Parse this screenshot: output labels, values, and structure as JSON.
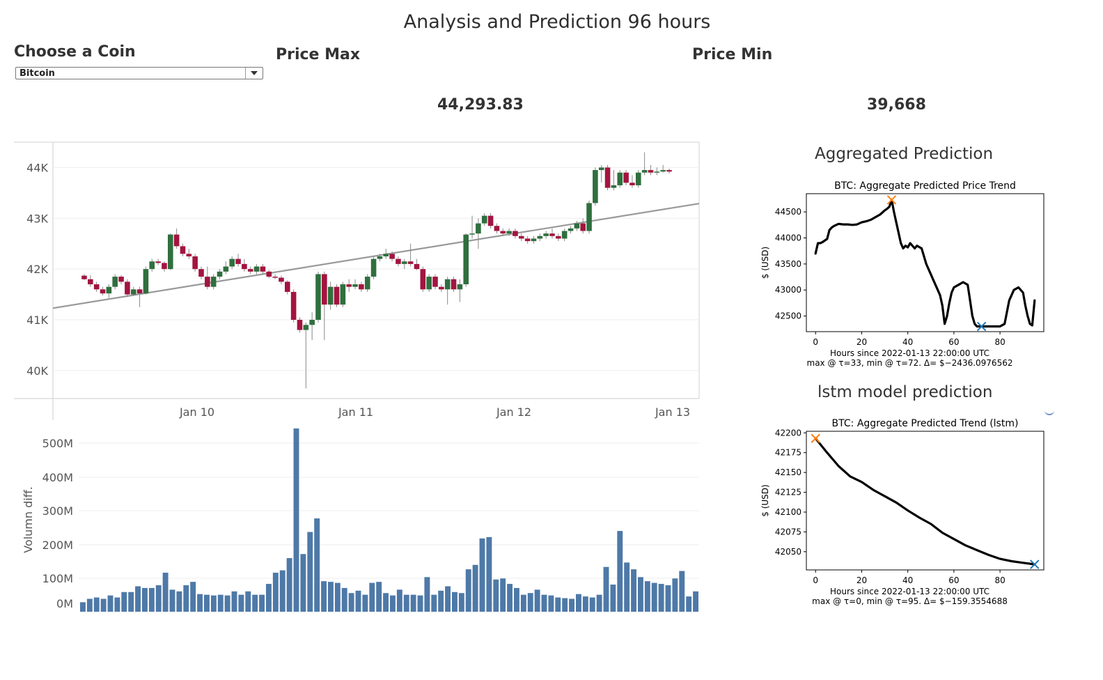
{
  "page": {
    "title": "Analysis and Prediction 96 hours",
    "coin_label": "Choose a Coin",
    "coin_selected": "Bitcoin",
    "price_max_label": "Price Max",
    "price_max_value": "44,293.83",
    "price_min_label": "Price Min",
    "price_min_value": "39,668",
    "agg_panel_title": "Aggregated Prediction",
    "lstm_panel_title": "lstm model prediction"
  },
  "colors": {
    "up": "#2f6f3e",
    "down": "#a31440",
    "trend": "#999999",
    "volume": "#4e79a7"
  },
  "chart_data": [
    {
      "type": "candlestick",
      "title": "",
      "xlabel": "",
      "ylabel": "",
      "x_ticks": [
        "Jan 10",
        "Jan 11",
        "Jan 12",
        "Jan 13"
      ],
      "y_ticks": [
        "40K",
        "41K",
        "42K",
        "43K",
        "44K"
      ],
      "ylim": [
        39450,
        44500
      ],
      "grid": true,
      "trendline": {
        "start": 41230,
        "end": 43290
      },
      "ohlc": [
        [
          41870,
          41900,
          41780,
          41800
        ],
        [
          41800,
          41880,
          41650,
          41700
        ],
        [
          41700,
          41750,
          41550,
          41600
        ],
        [
          41600,
          41650,
          41480,
          41520
        ],
        [
          41520,
          41700,
          41430,
          41650
        ],
        [
          41650,
          41900,
          41600,
          41850
        ],
        [
          41850,
          41880,
          41700,
          41750
        ],
        [
          41750,
          41800,
          41450,
          41500
        ],
        [
          41500,
          41650,
          41470,
          41600
        ],
        [
          41600,
          41650,
          41250,
          41520
        ],
        [
          41520,
          42050,
          41500,
          42000
        ],
        [
          42000,
          42200,
          41950,
          42150
        ],
        [
          42150,
          42200,
          42080,
          42120
        ],
        [
          42120,
          42150,
          41950,
          42000
        ],
        [
          42000,
          42700,
          41980,
          42680
        ],
        [
          42680,
          42800,
          42400,
          42450
        ],
        [
          42450,
          42500,
          42250,
          42300
        ],
        [
          42300,
          42400,
          42200,
          42250
        ],
        [
          42250,
          42300,
          41950,
          42000
        ],
        [
          42000,
          42050,
          41800,
          41850
        ],
        [
          41850,
          42050,
          41600,
          41650
        ],
        [
          41650,
          41900,
          41600,
          41850
        ],
        [
          41850,
          42000,
          41800,
          41950
        ],
        [
          41950,
          42150,
          41900,
          42050
        ],
        [
          42050,
          42250,
          42000,
          42200
        ],
        [
          42200,
          42300,
          42050,
          42100
        ],
        [
          42100,
          42200,
          41950,
          42000
        ],
        [
          42000,
          42050,
          41900,
          41950
        ],
        [
          41950,
          42100,
          41900,
          42050
        ],
        [
          42050,
          42100,
          41900,
          41950
        ],
        [
          41950,
          41980,
          41820,
          41850
        ],
        [
          41850,
          41900,
          41800,
          41830
        ],
        [
          41830,
          41870,
          41700,
          41750
        ],
        [
          41750,
          41780,
          41500,
          41550
        ],
        [
          41550,
          41600,
          40950,
          41000
        ],
        [
          41000,
          41050,
          40750,
          40800
        ],
        [
          40800,
          40950,
          39650,
          40900
        ],
        [
          40900,
          41150,
          40600,
          41000
        ],
        [
          41000,
          41950,
          40950,
          41900
        ],
        [
          41900,
          41950,
          40600,
          41300
        ],
        [
          41300,
          41750,
          41200,
          41650
        ],
        [
          41650,
          41700,
          41250,
          41300
        ],
        [
          41300,
          41750,
          41250,
          41700
        ],
        [
          41700,
          41800,
          41550,
          41650
        ],
        [
          41650,
          41800,
          41600,
          41700
        ],
        [
          41700,
          41750,
          41550,
          41600
        ],
        [
          41600,
          41900,
          41550,
          41850
        ],
        [
          41850,
          42250,
          41800,
          42200
        ],
        [
          42200,
          42300,
          42150,
          42250
        ],
        [
          42250,
          42400,
          42200,
          42300
        ],
        [
          42300,
          42350,
          42150,
          42200
        ],
        [
          42200,
          42250,
          42050,
          42100
        ],
        [
          42100,
          42200,
          42000,
          42150
        ],
        [
          42150,
          42500,
          42050,
          42100
        ],
        [
          42100,
          42200,
          41980,
          42000
        ],
        [
          42000,
          42050,
          41550,
          41600
        ],
        [
          41600,
          41900,
          41550,
          41850
        ],
        [
          41850,
          41900,
          41600,
          41650
        ],
        [
          41650,
          41700,
          41550,
          41600
        ],
        [
          41600,
          41850,
          41300,
          41800
        ],
        [
          41800,
          41850,
          41550,
          41600
        ],
        [
          41600,
          41800,
          41350,
          41700
        ],
        [
          41700,
          42700,
          41650,
          42680
        ],
        [
          42680,
          43050,
          42600,
          42700
        ],
        [
          42700,
          43000,
          42400,
          42900
        ],
        [
          42900,
          43100,
          42850,
          43050
        ],
        [
          43050,
          43100,
          42800,
          42850
        ],
        [
          42850,
          42900,
          42700,
          42750
        ],
        [
          42750,
          42800,
          42650,
          42700
        ],
        [
          42700,
          42800,
          42650,
          42750
        ],
        [
          42750,
          42800,
          42600,
          42650
        ],
        [
          42650,
          42700,
          42550,
          42600
        ],
        [
          42600,
          42650,
          42500,
          42550
        ],
        [
          42550,
          42650,
          42500,
          42600
        ],
        [
          42600,
          42700,
          42550,
          42650
        ],
        [
          42650,
          42750,
          42600,
          42700
        ],
        [
          42700,
          42800,
          42600,
          42650
        ],
        [
          42650,
          42700,
          42550,
          42600
        ],
        [
          42600,
          42800,
          42550,
          42750
        ],
        [
          42750,
          42850,
          42700,
          42800
        ],
        [
          42800,
          42950,
          42750,
          42900
        ],
        [
          42900,
          43000,
          42700,
          42750
        ],
        [
          42750,
          43350,
          42700,
          43300
        ],
        [
          43300,
          44000,
          43250,
          43950
        ],
        [
          43950,
          44050,
          43700,
          44000
        ],
        [
          44000,
          44050,
          43550,
          43600
        ],
        [
          43600,
          43950,
          43550,
          43650
        ],
        [
          43650,
          43950,
          43600,
          43900
        ],
        [
          43900,
          43950,
          43650,
          43700
        ],
        [
          43700,
          43850,
          43600,
          43650
        ],
        [
          43650,
          43950,
          43600,
          43900
        ],
        [
          43900,
          44300,
          43850,
          43950
        ],
        [
          43950,
          44050,
          43850,
          43900
        ],
        [
          43900,
          44000,
          43850,
          43920
        ],
        [
          43920,
          44050,
          43900,
          43950
        ],
        [
          43950,
          43980,
          43880,
          43920
        ]
      ]
    },
    {
      "type": "bar",
      "title": "",
      "xlabel": "",
      "ylabel": "Volumn diff.",
      "y_ticks": [
        "0M",
        "100M",
        "200M",
        "300M",
        "400M",
        "500M"
      ],
      "ylim": [
        -20,
        520
      ],
      "grid": true,
      "values": [
        8,
        18,
        22,
        18,
        28,
        22,
        38,
        38,
        55,
        50,
        50,
        58,
        95,
        45,
        40,
        58,
        68,
        32,
        30,
        28,
        30,
        28,
        40,
        30,
        40,
        30,
        30,
        62,
        95,
        102,
        138,
        520,
        150,
        215,
        255,
        70,
        68,
        65,
        50,
        35,
        42,
        30,
        65,
        68,
        35,
        28,
        45,
        30,
        30,
        28,
        82,
        30,
        42,
        55,
        38,
        35,
        105,
        118,
        196,
        200,
        75,
        78,
        62,
        50,
        30,
        35,
        45,
        30,
        28,
        22,
        20,
        18,
        32,
        25,
        22,
        30,
        112,
        60,
        218,
        125,
        105,
        82,
        70,
        65,
        62,
        58,
        78,
        100,
        25,
        40
      ]
    },
    {
      "type": "line",
      "title": "BTC: Aggregate Predicted Price Trend",
      "xlabel": "Hours since 2022-01-13 22:00:00 UTC",
      "ylabel": "$ (USD)",
      "annotation": "max @ τ=33, min @ τ=72. Δ= $−2436.0976562",
      "xlim": [
        -4,
        99
      ],
      "ylim": [
        42200,
        44850
      ],
      "x_ticks": [
        0,
        20,
        40,
        60,
        80
      ],
      "y_ticks": [
        42500,
        43000,
        43500,
        44000,
        44500
      ],
      "max_point": [
        33,
        44730
      ],
      "min_point": [
        72,
        42300
      ],
      "x": [
        0,
        1,
        2,
        3,
        4,
        5,
        6,
        7,
        8,
        9,
        10,
        12,
        14,
        16,
        18,
        20,
        22,
        24,
        26,
        28,
        30,
        31,
        32,
        33,
        34,
        35,
        36,
        37,
        38,
        39,
        40,
        41,
        42,
        43,
        44,
        46,
        48,
        50,
        52,
        53,
        54,
        55,
        56,
        57,
        58,
        59,
        60,
        62,
        64,
        66,
        67,
        68,
        69,
        70,
        72,
        74,
        76,
        78,
        80,
        82,
        84,
        86,
        88,
        90,
        91,
        92,
        93,
        94,
        95
      ],
      "y": [
        43700,
        43900,
        43900,
        43920,
        43950,
        43980,
        44150,
        44200,
        44230,
        44250,
        44270,
        44260,
        44260,
        44250,
        44260,
        44300,
        44320,
        44350,
        44400,
        44450,
        44530,
        44560,
        44600,
        44730,
        44500,
        44300,
        44100,
        43900,
        43800,
        43850,
        43820,
        43900,
        43850,
        43800,
        43850,
        43800,
        43500,
        43300,
        43100,
        43000,
        42900,
        42700,
        42350,
        42500,
        42750,
        42950,
        43050,
        43100,
        43150,
        43100,
        42800,
        42500,
        42350,
        42300,
        42300,
        42300,
        42300,
        42300,
        42300,
        42350,
        42800,
        43000,
        43050,
        42950,
        42700,
        42500,
        42350,
        42320,
        42800
      ]
    },
    {
      "type": "line",
      "title": "BTC: Aggregate Predicted Trend (lstm)",
      "xlabel": "Hours since 2022-01-13 22:00:00 UTC",
      "ylabel": "$ (USD)",
      "annotation": "max @ τ=0, min @ τ=95. Δ= $−159.3554688",
      "xlim": [
        -4,
        99
      ],
      "ylim": [
        42027,
        42202
      ],
      "x_ticks": [
        0,
        20,
        40,
        60,
        80
      ],
      "y_ticks": [
        42050,
        42075,
        42100,
        42125,
        42150,
        42175,
        42200
      ],
      "max_point": [
        0,
        42193
      ],
      "min_point": [
        95,
        42034
      ],
      "x": [
        0,
        5,
        10,
        15,
        20,
        25,
        30,
        35,
        40,
        45,
        50,
        55,
        60,
        65,
        70,
        75,
        80,
        85,
        90,
        95
      ],
      "y": [
        42193,
        42175,
        42158,
        42145,
        42138,
        42128,
        42120,
        42112,
        42102,
        42093,
        42085,
        42074,
        42066,
        42058,
        42052,
        42046,
        42041,
        42038,
        42036,
        42034
      ]
    }
  ]
}
